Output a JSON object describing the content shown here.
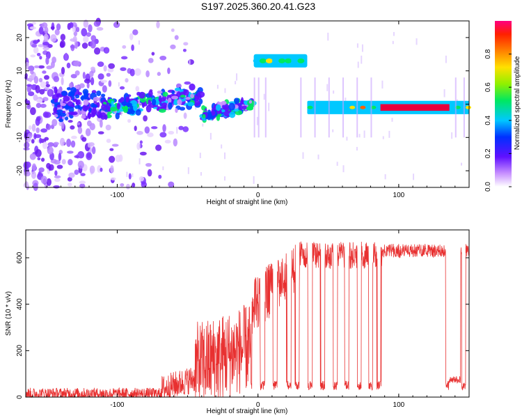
{
  "title": "S197.2025.360.20.41.G23",
  "chart_data": [
    {
      "type": "heatmap",
      "name": "spectrogram",
      "xlabel": "Height of straight line (km)",
      "ylabel": "Frequency (Hz)",
      "xlim": [
        -165,
        150
      ],
      "ylim": [
        -25,
        25
      ],
      "xticks": [
        -100,
        0,
        100
      ],
      "yticks": [
        -20,
        -10,
        0,
        10,
        20
      ],
      "colorbar": {
        "label": "Normalized spectral amplitude",
        "range": [
          0,
          1
        ],
        "ticks": [
          0.0,
          0.2,
          0.4,
          0.6,
          0.8
        ]
      },
      "ridge": [
        {
          "x_range": [
            -165,
            -110
          ],
          "freq_hz": 0,
          "note": "scattered noise"
        },
        {
          "x_range": [
            -110,
            -40
          ],
          "freq_hz": 2
        },
        {
          "x_range": [
            -40,
            -3
          ],
          "freq_hz": -1
        },
        {
          "x_range": [
            -3,
            35
          ],
          "freq_hz": 13
        },
        {
          "x_range": [
            35,
            150
          ],
          "freq_hz": -1
        }
      ]
    },
    {
      "type": "line",
      "name": "snr",
      "xlabel": "Height of straight line (km)",
      "ylabel": "SNR (10 * v/v)",
      "xlim": [
        -165,
        150
      ],
      "ylim": [
        0,
        720
      ],
      "xticks": [
        -100,
        0,
        100
      ],
      "yticks": [
        0,
        200,
        400,
        600
      ],
      "color": "#e83030"
    }
  ]
}
